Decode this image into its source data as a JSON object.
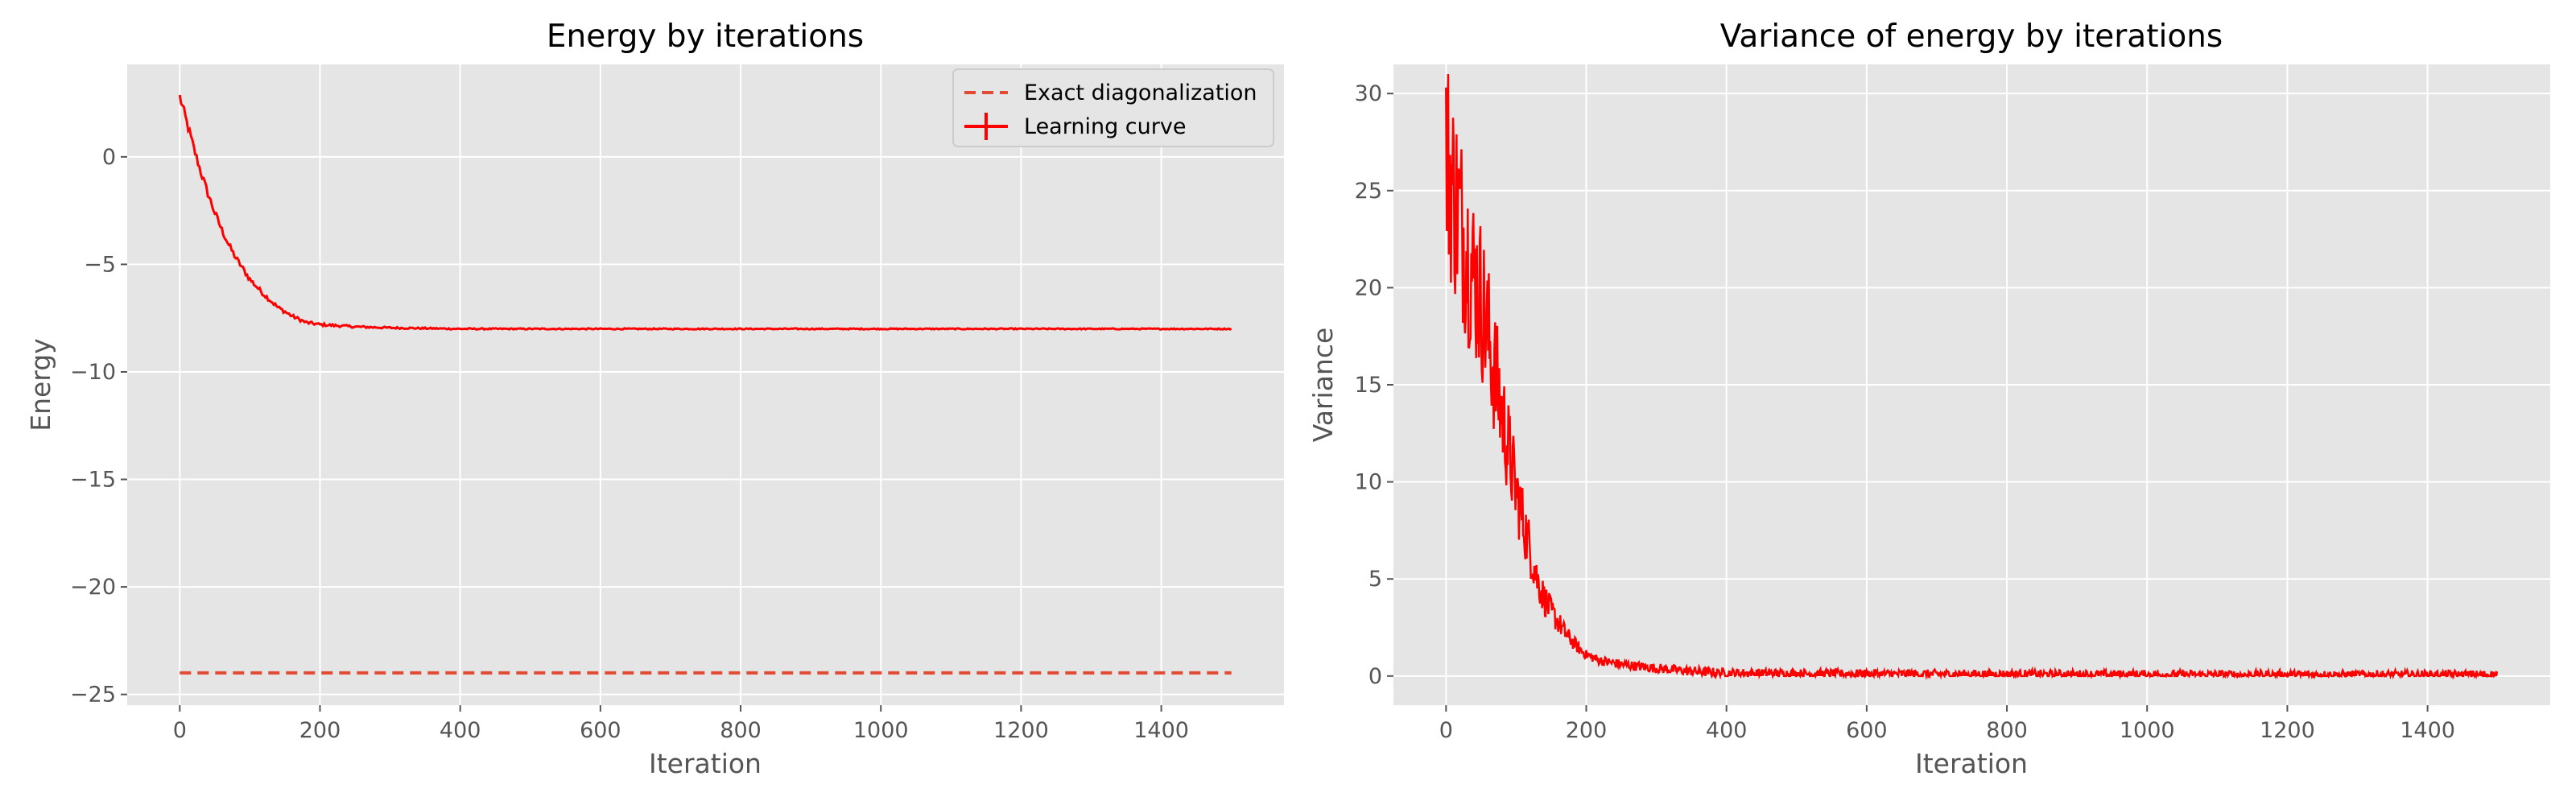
{
  "colors": {
    "plot_background": "#e5e5e5",
    "grid": "#ffffff",
    "series": "#ff0000",
    "reference_line": "#e24a33",
    "axis_text": "#555555"
  },
  "chart_data": [
    {
      "type": "line",
      "title": "Energy by iterations",
      "xlabel": "Iteration",
      "ylabel": "Energy",
      "xlim": [
        -75,
        1575
      ],
      "ylim": [
        -25.5,
        4.3
      ],
      "xticks": [
        0,
        200,
        400,
        600,
        800,
        1000,
        1200,
        1400
      ],
      "yticks": [
        0,
        -5,
        -10,
        -15,
        -20,
        -25
      ],
      "xtick_labels": [
        "0",
        "200",
        "400",
        "600",
        "800",
        "1000",
        "1200",
        "1400"
      ],
      "ytick_labels": [
        "0",
        "−5",
        "−10",
        "−15",
        "−20",
        "−25"
      ],
      "grid": true,
      "legend_position": "top-right",
      "legend": [
        "Exact diagonalization",
        "Learning curve"
      ],
      "series": [
        {
          "name": "Exact diagonalization",
          "style": "dashed",
          "x": [
            0,
            1500
          ],
          "y": [
            -24.0,
            -24.0
          ]
        },
        {
          "name": "Learning curve",
          "style": "solid-errorbar",
          "x": [
            0,
            10,
            20,
            30,
            40,
            50,
            60,
            70,
            80,
            90,
            100,
            120,
            140,
            160,
            180,
            200,
            250,
            300,
            400,
            500,
            600,
            800,
            1000,
            1200,
            1400,
            1500
          ],
          "y": [
            2.8,
            1.6,
            0.4,
            -0.7,
            -1.7,
            -2.6,
            -3.4,
            -4.1,
            -4.7,
            -5.2,
            -5.7,
            -6.4,
            -7.0,
            -7.4,
            -7.7,
            -7.8,
            -7.9,
            -7.95,
            -8.0,
            -8.0,
            -8.0,
            -8.0,
            -8.0,
            -8.0,
            -8.0,
            -8.0
          ]
        }
      ]
    },
    {
      "type": "line",
      "title": "Variance of energy by iterations",
      "xlabel": "Iteration",
      "ylabel": "Variance",
      "xlim": [
        -75,
        1575
      ],
      "ylim": [
        -1.5,
        31.5
      ],
      "xticks": [
        0,
        200,
        400,
        600,
        800,
        1000,
        1200,
        1400
      ],
      "yticks": [
        0,
        5,
        10,
        15,
        20,
        25,
        30
      ],
      "xtick_labels": [
        "0",
        "200",
        "400",
        "600",
        "800",
        "1000",
        "1200",
        "1400"
      ],
      "ytick_labels": [
        "0",
        "5",
        "10",
        "15",
        "20",
        "25",
        "30"
      ],
      "grid": true,
      "series": [
        {
          "style": "noisy",
          "x": [
            0,
            10,
            20,
            30,
            40,
            50,
            60,
            70,
            80,
            90,
            100,
            110,
            120,
            130,
            140,
            150,
            160,
            170,
            180,
            190,
            200,
            220,
            250,
            300,
            350,
            400,
            500,
            600,
            800,
            1000,
            1200,
            1400,
            1500
          ],
          "y": [
            27.0,
            25.0,
            23.5,
            22.0,
            20.5,
            19.5,
            17.5,
            15.5,
            13.5,
            11.5,
            9.5,
            8.0,
            6.5,
            5.0,
            4.0,
            3.3,
            2.8,
            2.2,
            1.8,
            1.4,
            1.1,
            0.8,
            0.6,
            0.4,
            0.25,
            0.15,
            0.12,
            0.1,
            0.08,
            0.06,
            0.05,
            0.05,
            0.05
          ]
        }
      ]
    }
  ]
}
